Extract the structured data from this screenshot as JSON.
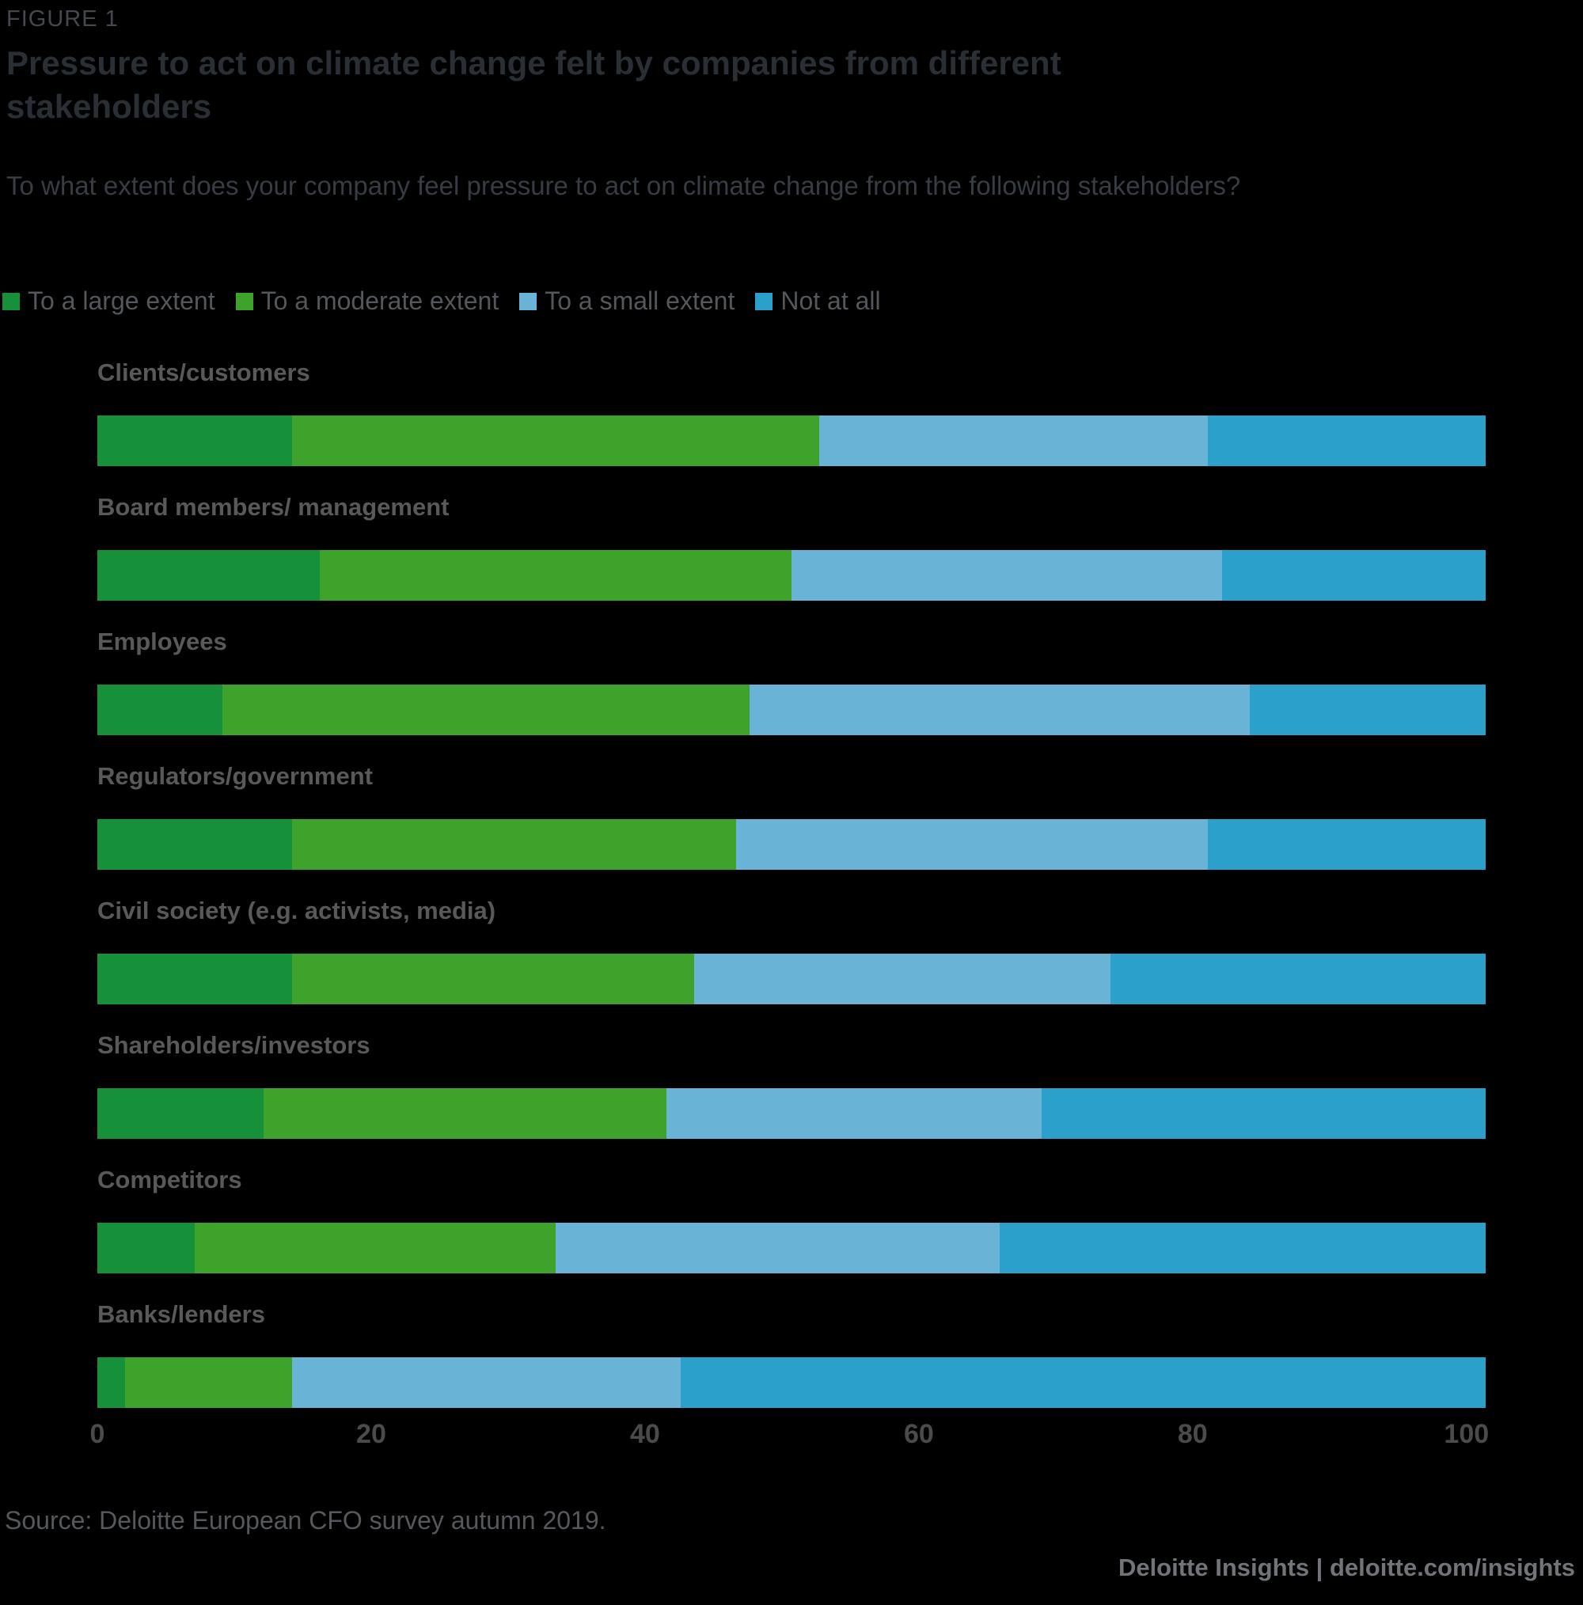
{
  "figure_label": "FIGURE 1",
  "title": "Pressure to act on climate change felt by companies from different stakeholders",
  "subtitle": "To what extent does your company feel pressure to act on climate change from the following stakeholders?",
  "source": "Source: Deloitte European CFO survey autumn 2019.",
  "footer": "Deloitte Insights | deloitte.com/insights",
  "colors": {
    "background": "#000000",
    "large_extent": "#169139",
    "moderate_extent": "#3EA32A",
    "small_extent": "#68B3D6",
    "not_at_all": "#2AA0CA",
    "title_text": "#2A2E35",
    "muted_text": "#595959"
  },
  "chart_data": {
    "type": "bar",
    "orientation": "horizontal",
    "stacked": true,
    "grid": false,
    "legend_position": "top",
    "title": "Pressure to act on climate change felt by companies from different stakeholders",
    "xlabel": "",
    "ylabel": "",
    "xlim": [
      0,
      101.4
    ],
    "ticks": [
      0,
      20,
      40,
      60,
      80,
      100
    ],
    "categories": [
      "Clients/customers",
      "Board members/ management",
      "Employees",
      "Regulators/government",
      "Civil society (e.g. activists, media)",
      "Shareholders/investors",
      "Competitors",
      "Banks/lenders"
    ],
    "series": [
      {
        "name": "To a large extent",
        "color": "#169139",
        "values": [
          14,
          16,
          9,
          14,
          14,
          12,
          7,
          2
        ]
      },
      {
        "name": "To a moderate extent",
        "color": "#3EA32A",
        "values": [
          38,
          34,
          38,
          32,
          29,
          29,
          26,
          12
        ]
      },
      {
        "name": "To a small extent",
        "color": "#68B3D6",
        "values": [
          28,
          31,
          36,
          34,
          30,
          27,
          32,
          28
        ]
      },
      {
        "name": "Not at all",
        "color": "#2AA0CA",
        "values": [
          20,
          19,
          17,
          20,
          27,
          32,
          35,
          58
        ]
      }
    ]
  }
}
